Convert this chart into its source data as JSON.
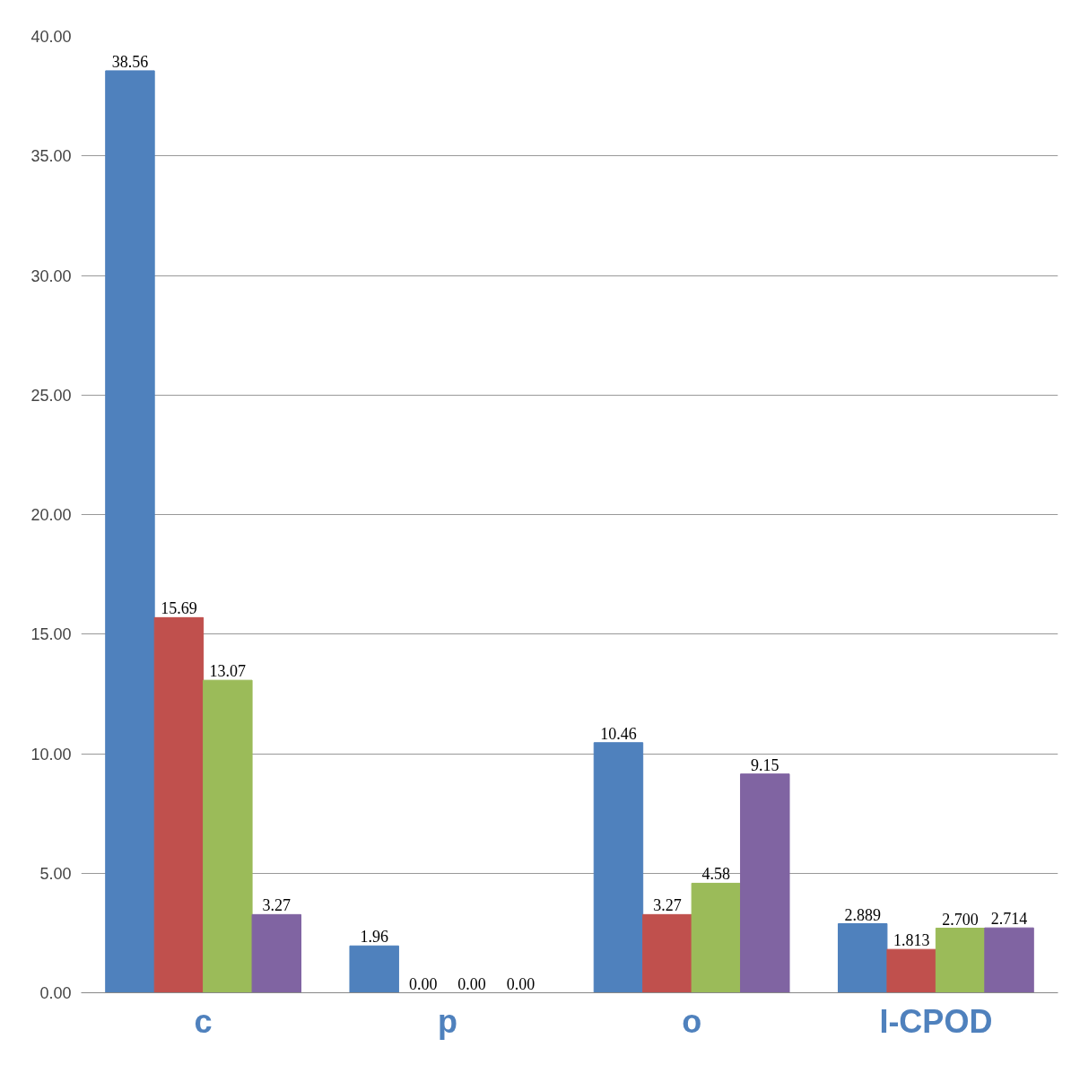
{
  "chart_data": {
    "type": "bar",
    "categories": [
      "c",
      "p",
      "o",
      "I-CPOD"
    ],
    "series": [
      {
        "color": "#4f81bd",
        "values": [
          38.56,
          1.96,
          10.46,
          2.889
        ],
        "value_labels": [
          "38.56",
          "1.96",
          "10.46",
          "2.889"
        ]
      },
      {
        "color": "#c0504d",
        "values": [
          15.69,
          0.0,
          3.27,
          1.813
        ],
        "value_labels": [
          "15.69",
          "0.00",
          "3.27",
          "1.813"
        ]
      },
      {
        "color": "#9bbb59",
        "values": [
          13.07,
          0.0,
          4.58,
          2.7
        ],
        "value_labels": [
          "13.07",
          "0.00",
          "4.58",
          "2.700"
        ]
      },
      {
        "color": "#8064a2",
        "values": [
          3.27,
          0.0,
          9.15,
          2.714
        ],
        "value_labels": [
          "3.27",
          "0.00",
          "9.15",
          "2.714"
        ]
      }
    ],
    "ylim": [
      0,
      40
    ],
    "yticks": [
      {
        "value": 0,
        "label": "0.00"
      },
      {
        "value": 5,
        "label": "5.00"
      },
      {
        "value": 10,
        "label": "10.00"
      },
      {
        "value": 15,
        "label": "15.00"
      },
      {
        "value": 20,
        "label": "20.00"
      },
      {
        "value": 25,
        "label": "25.00"
      },
      {
        "value": 30,
        "label": "30.00"
      },
      {
        "value": 35,
        "label": "35.00"
      },
      {
        "value": 40,
        "label": "40.00"
      }
    ],
    "grid": "y"
  }
}
